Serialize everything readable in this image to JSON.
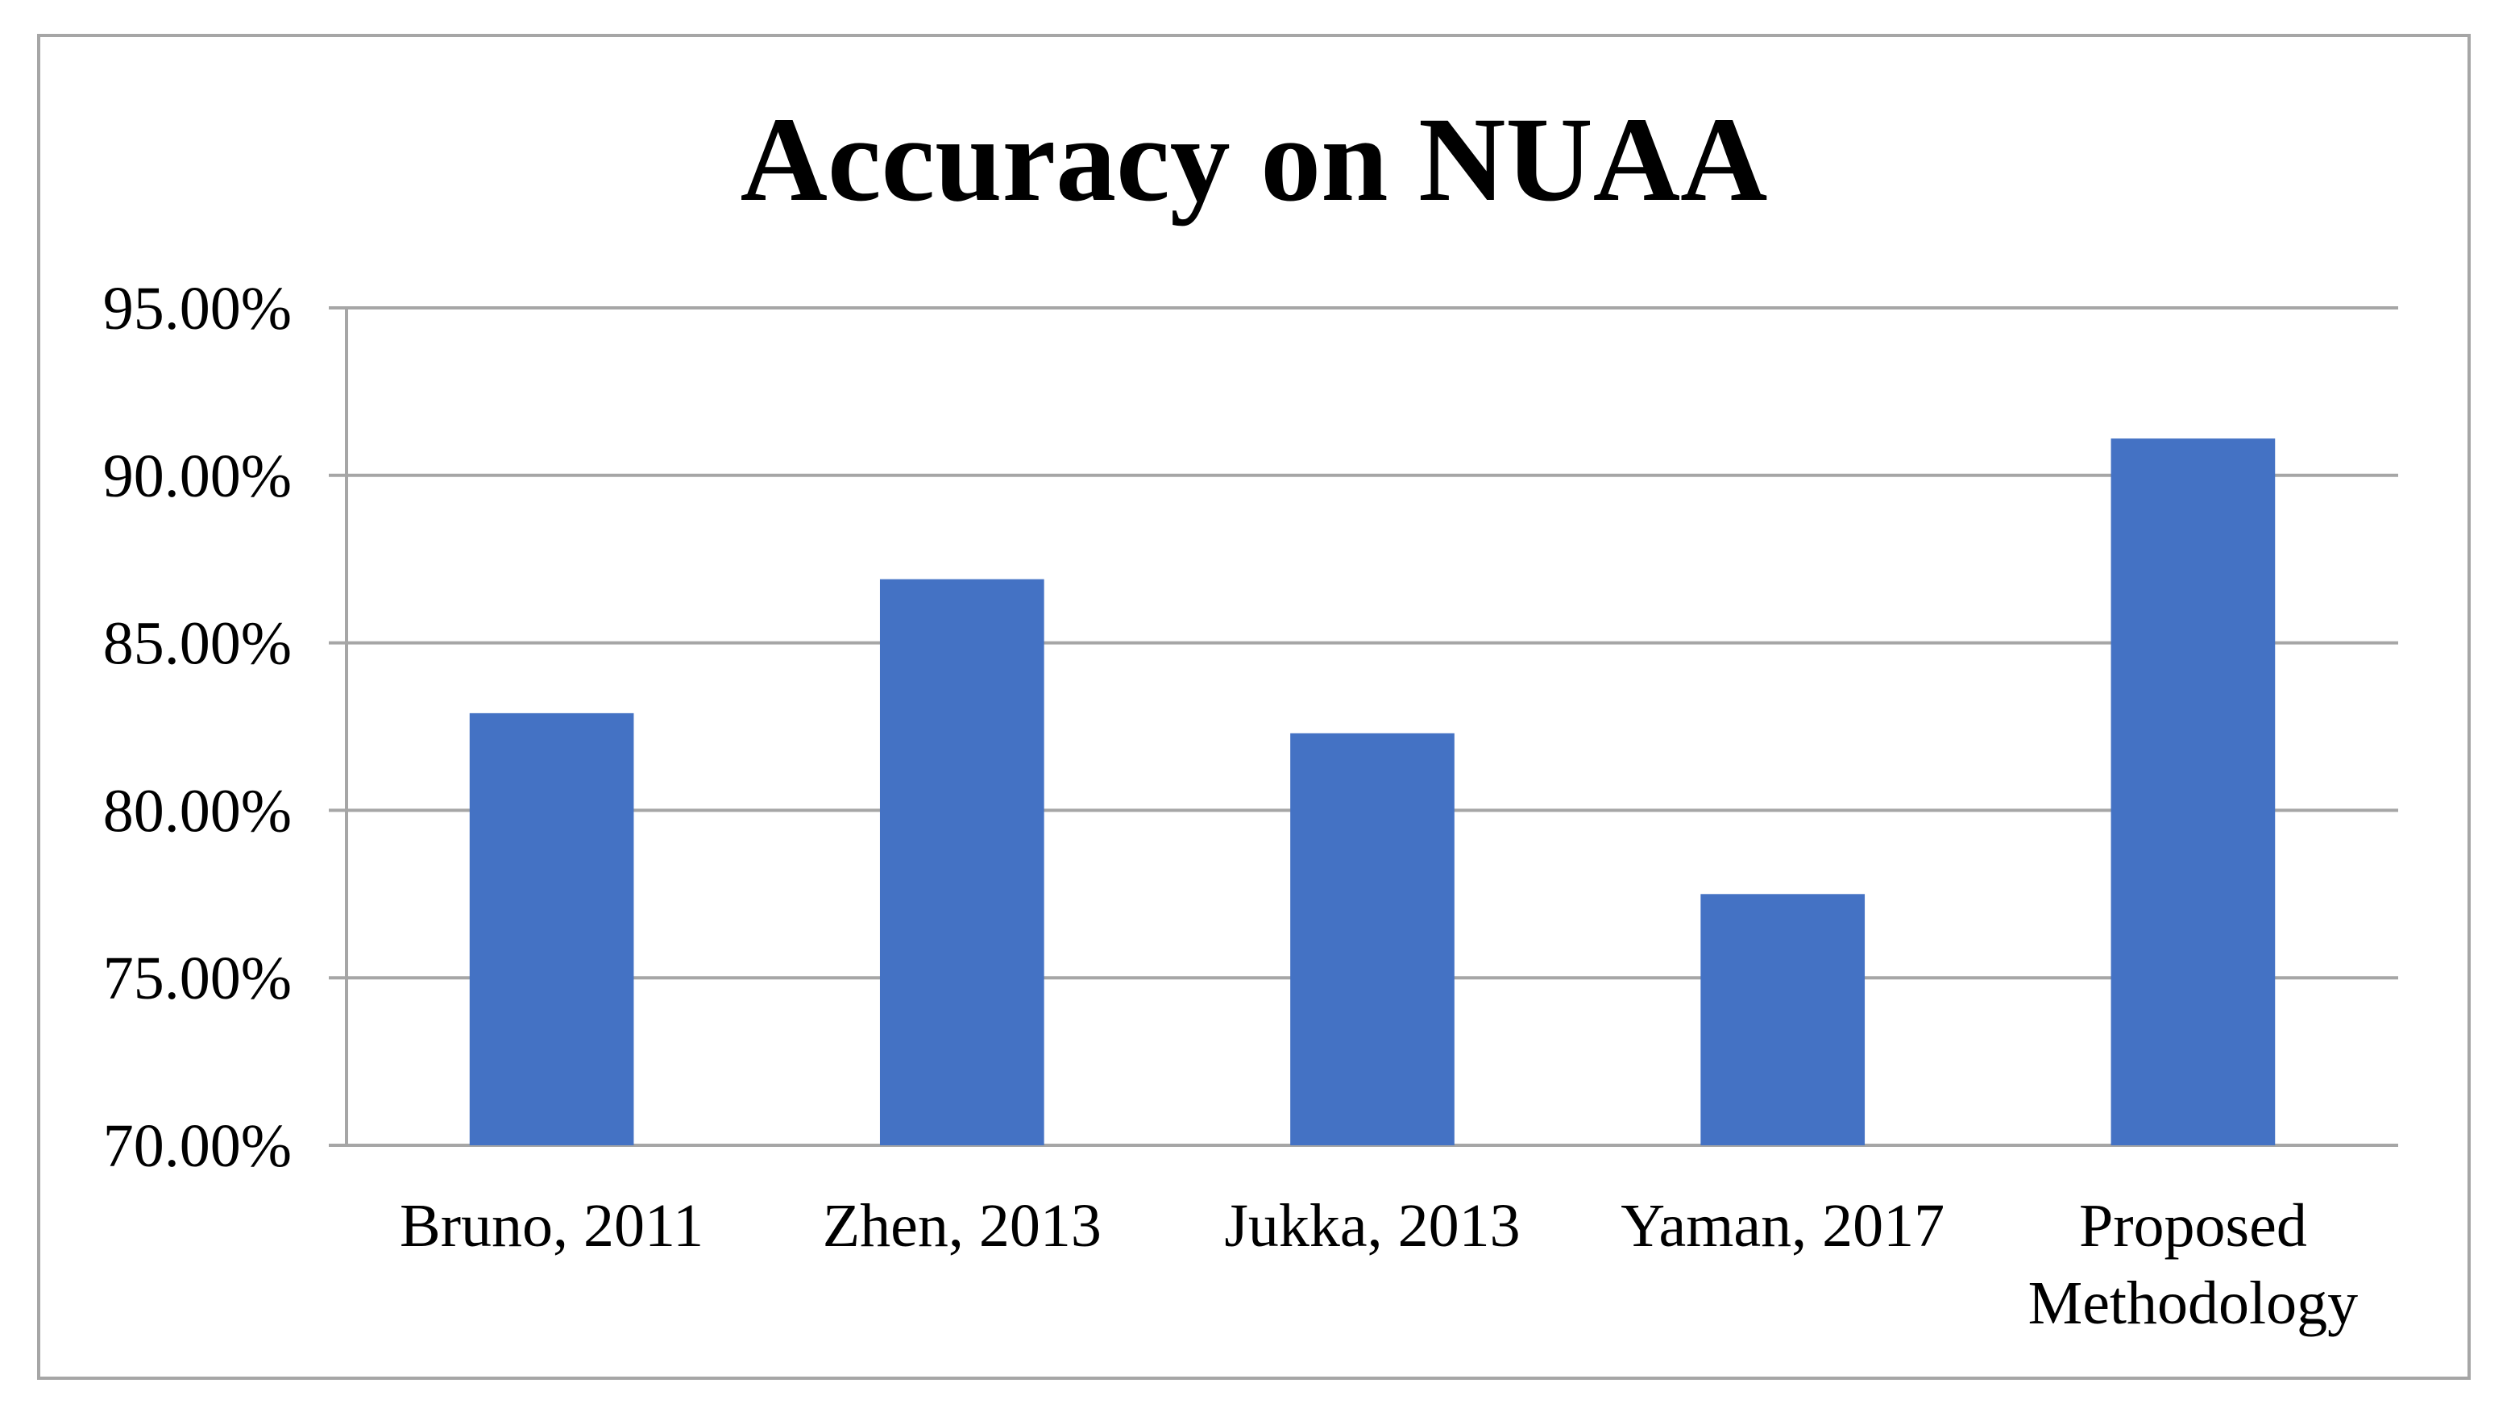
{
  "chart_data": {
    "type": "bar",
    "title": "Accuracy on NUAA",
    "categories": [
      "Bruno, 2011",
      "Zhen, 2013",
      "Jukka, 2013",
      "Yaman, 2017",
      "Proposed Methodology"
    ],
    "category_lines": [
      [
        "Bruno, 2011"
      ],
      [
        "Zhen, 2013"
      ],
      [
        "Jukka, 2013"
      ],
      [
        "Yaman, 2017"
      ],
      [
        "Proposed",
        "Methodology"
      ]
    ],
    "values": [
      0.829,
      0.869,
      0.823,
      0.775,
      0.911
    ],
    "ylim": [
      0.7,
      0.95
    ],
    "yticks": [
      0.7,
      0.75,
      0.8,
      0.85,
      0.9,
      0.95
    ],
    "ytick_labels": [
      "70.00%",
      "75.00%",
      "80.00%",
      "85.00%",
      "90.00%",
      "95.00%"
    ],
    "xlabel": "",
    "ylabel": "",
    "grid": true,
    "legend": "none",
    "bar_color": "#4472c4",
    "grid_color": "#a6a6a6"
  }
}
